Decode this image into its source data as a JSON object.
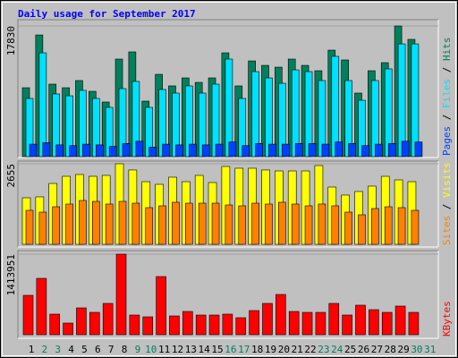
{
  "chart_data": [
    {
      "type": "bar",
      "title": "Daily usage for September 2017",
      "ylim": [
        0,
        17830
      ],
      "yticks": [
        17830
      ],
      "legend_separator": " / ",
      "series": [
        {
          "name": "Hits",
          "color": "#00805c",
          "values": [
            9400,
            16600,
            9890,
            9400,
            10380,
            8910,
            7450,
            13310,
            14290,
            7570,
            11230,
            9650,
            10740,
            10130,
            10740,
            14160,
            9650,
            13060,
            12450,
            12210,
            13310,
            12450,
            11720,
            14530,
            13190,
            8670,
            11720,
            12820,
            17830,
            16000,
            null
          ]
        },
        {
          "name": "Files",
          "color": "#00e0ff",
          "values": [
            7940,
            14160,
            8550,
            8300,
            9040,
            7940,
            6720,
            9280,
            10260,
            6720,
            9160,
            8670,
            9650,
            8670,
            9890,
            13310,
            7940,
            11600,
            10740,
            10010,
            11840,
            11600,
            10380,
            13680,
            10380,
            7690,
            10380,
            11970,
            15380,
            15380,
            null
          ]
        },
        {
          "name": "Pages",
          "color": "#0040ff",
          "values": [
            1700,
            1900,
            1600,
            1500,
            1700,
            1600,
            1400,
            1800,
            2100,
            1300,
            1700,
            1600,
            1700,
            1600,
            1700,
            2000,
            1500,
            1800,
            1700,
            1700,
            1800,
            1800,
            1700,
            2000,
            1800,
            1500,
            1700,
            1800,
            2100,
            2000,
            null
          ]
        }
      ]
    },
    {
      "type": "bar",
      "ylim": [
        0,
        2655
      ],
      "yticks": [
        2655
      ],
      "legend_separator": " / ",
      "series": [
        {
          "name": "Visits",
          "color": "#ffff00",
          "values": [
            1534,
            1564,
            2006,
            2242,
            2301,
            2242,
            2272,
            2655,
            2450,
            2065,
            1977,
            2213,
            2065,
            2272,
            2036,
            2567,
            2508,
            2508,
            2450,
            2419,
            2419,
            2419,
            2596,
            1888,
            1623,
            1741,
            1918,
            2242,
            2124,
            2065,
            null
          ]
        },
        {
          "name": "Sites",
          "color": "#ff8000",
          "values": [
            1121,
            1062,
            1239,
            1328,
            1446,
            1416,
            1328,
            1416,
            1357,
            1210,
            1269,
            1387,
            1357,
            1357,
            1357,
            1298,
            1269,
            1357,
            1328,
            1387,
            1328,
            1269,
            1328,
            1269,
            1062,
            974,
            1180,
            1239,
            1210,
            1121,
            null
          ]
        }
      ]
    },
    {
      "type": "bar",
      "ylim": [
        0,
        1413951
      ],
      "yticks": [
        1413951
      ],
      "categories": [
        "1",
        "2",
        "3",
        "4",
        "5",
        "6",
        "7",
        "8",
        "9",
        "10",
        "11",
        "12",
        "13",
        "14",
        "15",
        "16",
        "17",
        "18",
        "19",
        "20",
        "21",
        "22",
        "23",
        "24",
        "25",
        "26",
        "27",
        "28",
        "29",
        "30",
        "31"
      ],
      "category_colors": [
        "#000000",
        "#00805c",
        "#00805c",
        "#000000",
        "#000000",
        "#000000",
        "#000000",
        "#000000",
        "#00805c",
        "#00805c",
        "#000000",
        "#000000",
        "#000000",
        "#000000",
        "#000000",
        "#00805c",
        "#00805c",
        "#000000",
        "#000000",
        "#000000",
        "#000000",
        "#000000",
        "#00805c",
        "#00805c",
        "#000000",
        "#000000",
        "#000000",
        "#000000",
        "#000000",
        "#00805c",
        "#00805c"
      ],
      "series": [
        {
          "name": "KBytes",
          "color": "#ff0000",
          "values": [
            691300,
            989800,
            361400,
            204200,
            471300,
            392800,
            549900,
            1413951,
            345600,
            314200,
            1021200,
            329900,
            408500,
            345600,
            345600,
            361400,
            298500,
            424200,
            549900,
            707000,
            408500,
            392800,
            392800,
            549900,
            345600,
            518500,
            439900,
            392800,
            502800,
            392800,
            null
          ]
        }
      ]
    }
  ]
}
